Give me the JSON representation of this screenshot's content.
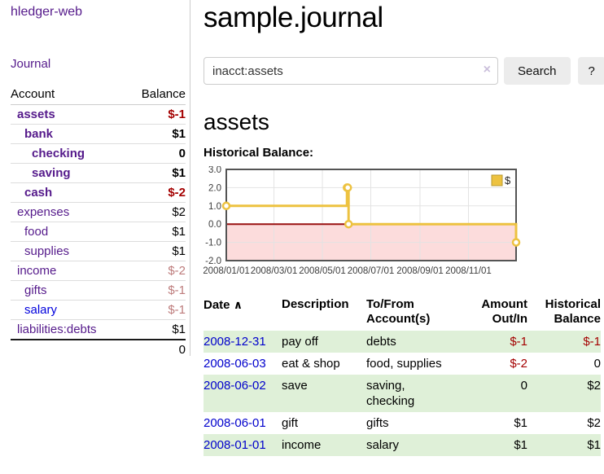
{
  "sidebar": {
    "app_title": "hledger-web",
    "journal_link": "Journal",
    "accounts_header": {
      "account": "Account",
      "balance": "Balance"
    },
    "accounts": [
      {
        "name": "assets",
        "balance": "$-1"
      },
      {
        "name": "bank",
        "balance": "$1"
      },
      {
        "name": "checking",
        "balance": "0"
      },
      {
        "name": "saving",
        "balance": "$1"
      },
      {
        "name": "cash",
        "balance": "$-2"
      },
      {
        "name": "expenses",
        "balance": "$2"
      },
      {
        "name": "food",
        "balance": "$1"
      },
      {
        "name": "supplies",
        "balance": "$1"
      },
      {
        "name": "income",
        "balance": "$-2"
      },
      {
        "name": "gifts",
        "balance": "$-1"
      },
      {
        "name": "salary",
        "balance": "$-1"
      },
      {
        "name": "liabilities:debts",
        "balance": "$1"
      }
    ],
    "total": "0"
  },
  "main": {
    "title": "sample.journal",
    "search": {
      "value": "inacct:assets",
      "clear_icon": "×",
      "button_label": "Search",
      "help_label": "?"
    },
    "account_heading": "assets",
    "chart_label": "Historical Balance:"
  },
  "chart_data": {
    "type": "line",
    "step": true,
    "title": "Historical Balance",
    "series": [
      {
        "name": "$",
        "points": [
          [
            "2008-01-01",
            1
          ],
          [
            "2008-06-01",
            2
          ],
          [
            "2008-06-02",
            2
          ],
          [
            "2008-06-03",
            0
          ],
          [
            "2008-12-31",
            -1
          ]
        ]
      }
    ],
    "x_range": [
      "2008-01-01",
      "2008-12-31"
    ],
    "x_ticks": [
      "2008/01/01",
      "2008/03/01",
      "2008/05/01",
      "2008/07/01",
      "2008/09/01",
      "2008/11/01"
    ],
    "y_ticks": [
      3.0,
      2.0,
      1.0,
      0.0,
      -1.0,
      -2.0
    ],
    "ylim": [
      -2,
      3
    ],
    "grid": true,
    "legend": {
      "label": "$",
      "position": "top-right"
    },
    "colors": {
      "line": "#EDC240",
      "point_fill": "#ffffff",
      "negative_region": "#fcdcdc",
      "zero_line": "#991111",
      "grid": "#e3e3e3",
      "border": "#545454",
      "legend_box_border": "#b89a30"
    }
  },
  "register": {
    "headers": {
      "date": "Date",
      "sort_icon": "∧",
      "description": "Description",
      "account": "To/From Account(s)",
      "amount": "Amount Out/In",
      "balance": "Historical Balance"
    },
    "rows": [
      {
        "date": "2008-12-31",
        "description": "pay off",
        "account": "debts",
        "amount": "$-1",
        "balance": "$-1"
      },
      {
        "date": "2008-06-03",
        "description": "eat & shop",
        "account": "food, supplies",
        "amount": "$-2",
        "balance": "0"
      },
      {
        "date": "2008-06-02",
        "description": "save",
        "account": "saving, checking",
        "amount": "0",
        "balance": "$2"
      },
      {
        "date": "2008-06-01",
        "description": "gift",
        "account": "gifts",
        "amount": "$1",
        "balance": "$2"
      },
      {
        "date": "2008-01-01",
        "description": "income",
        "account": "salary",
        "amount": "$1",
        "balance": "$1"
      }
    ]
  },
  "colors": {
    "link_purple": "#551a8b",
    "link_blue": "#0000cc",
    "negative_strong": "#a40000",
    "negative_muted": "#bd7b7b",
    "row_highlight_green": "#dff0d8",
    "button_bg": "#ececec",
    "divider": "#cccccc"
  }
}
